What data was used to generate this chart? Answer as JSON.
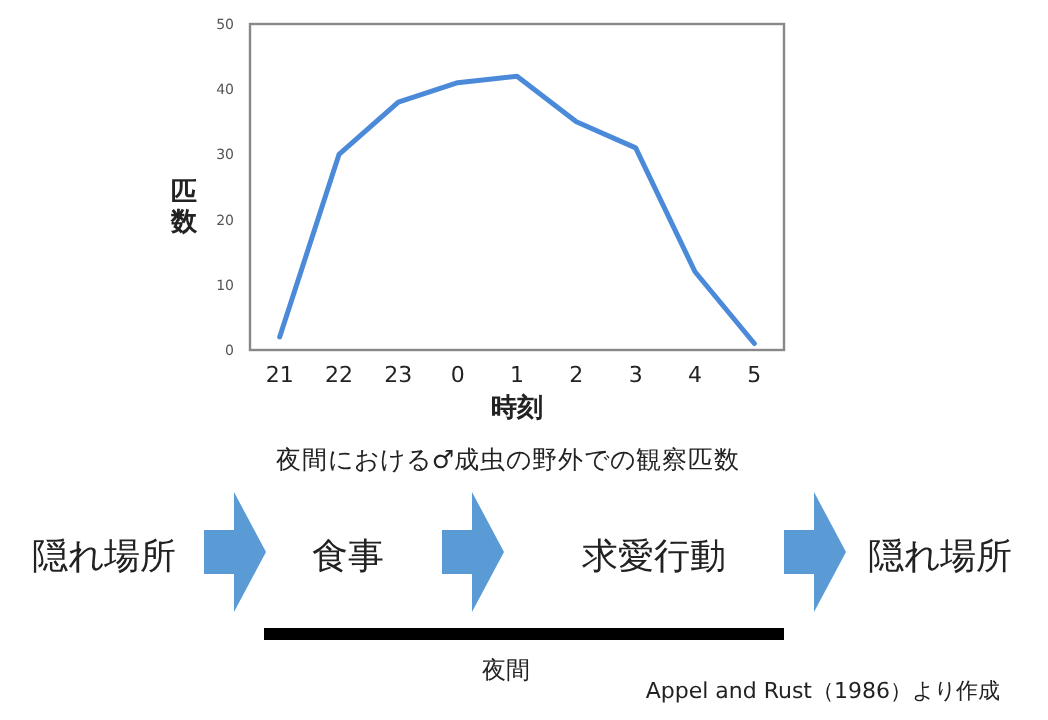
{
  "chart_data": {
    "type": "line",
    "title": "夜間における♂成虫の野外での観察匹数",
    "xlabel": "時刻",
    "ylabel": "匹数",
    "categories": [
      "21",
      "22",
      "23",
      "0",
      "1",
      "2",
      "3",
      "4",
      "5"
    ],
    "series": [
      {
        "color": "#4a8ad8",
        "values": [
          2,
          30,
          38,
          41,
          42,
          35,
          31,
          12,
          1
        ]
      }
    ],
    "ylim": [
      0,
      50
    ],
    "yticks": [
      0,
      10,
      20,
      30,
      40,
      50
    ],
    "grid": false,
    "marker": "none",
    "line_style": "solid",
    "annotations": [
      "隠れ場所",
      "食事",
      "求愛行動",
      "隠れ場所",
      "夜間",
      "Appel and Rust（1986）より作成"
    ]
  }
}
